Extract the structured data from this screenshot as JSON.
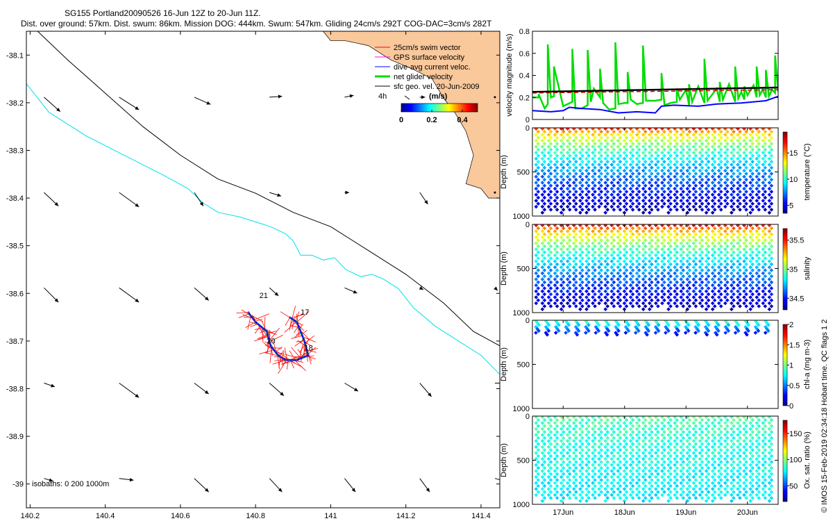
{
  "title": {
    "line1": "SG155 Portland20090526 16-Jun 12Z to 20-Jun 11Z.",
    "line2": "Dist. over ground: 57km. Dist. swum: 86km. Mission DOG: 444km. Swum: 547km. Gliding 24cm/s 292T COG-DAC=3cm/s 282T"
  },
  "colors": {
    "land": "#f9c89b",
    "isobath_200": "#00e0e8",
    "isobath_1000": "#000000",
    "swim": "#ff0000",
    "gps": "#ff00ff",
    "dac": "#0000ff",
    "net": "#00dd00",
    "sfc": "#000000",
    "trend_red": "#cc0000"
  },
  "chart_data": [
    {
      "type": "scatter",
      "name": "map",
      "xlim": [
        140.19,
        141.45
      ],
      "ylim": [
        -39.05,
        -38.05
      ],
      "xticks": [
        140.2,
        140.4,
        140.6,
        140.8,
        141,
        141.2,
        141.4
      ],
      "xtick_labels": [
        "140.2",
        "140.4",
        "140.6",
        "140.8",
        "141",
        "141.2",
        "141.4"
      ],
      "yticks": [
        -38.1,
        -38.2,
        -38.3,
        -38.4,
        -38.5,
        -38.6,
        -38.7,
        -38.8,
        -38.9,
        -39
      ],
      "ytick_labels": [
        "-38.1",
        "-38.2",
        "-38.3",
        "-38.4",
        "-38.5",
        "-38.6",
        "-38.7",
        "-38.8",
        "-38.9",
        "-39"
      ],
      "legend": {
        "items": [
          "25cm/s swim vector",
          "GPS surface velocity",
          "dive-avg current veloc.",
          "net glider velocity",
          "sfc geo. vel. 20-Jun-2009"
        ],
        "time_label": "4h",
        "colorbar_title": "(m/s)",
        "colorbar_ticks": [
          0,
          0.2,
          0.4
        ],
        "colorbar_tick_labels": [
          "0",
          "0.2",
          "0.4"
        ],
        "colorbar_range": [
          0,
          0.5
        ]
      },
      "isobath_label": "isobaths: 0   200  1000m",
      "day_labels": [
        {
          "text": "21",
          "lon": 140.81,
          "lat": -38.61
        },
        {
          "text": "17",
          "lon": 140.92,
          "lat": -38.645
        },
        {
          "text": "20",
          "lon": 140.83,
          "lat": -38.705
        },
        {
          "text": "18",
          "lon": 140.93,
          "lat": -38.72
        }
      ],
      "coastline": [
        [
          140.98,
          -38.05
        ],
        [
          141.0,
          -38.07
        ],
        [
          141.04,
          -38.07
        ],
        [
          141.1,
          -38.08
        ],
        [
          141.16,
          -38.11
        ],
        [
          141.22,
          -38.13
        ],
        [
          141.27,
          -38.15
        ],
        [
          141.3,
          -38.19
        ],
        [
          141.33,
          -38.22
        ],
        [
          141.36,
          -38.26
        ],
        [
          141.38,
          -38.31
        ],
        [
          141.36,
          -38.37
        ],
        [
          141.4,
          -38.38
        ],
        [
          141.42,
          -38.4
        ],
        [
          141.45,
          -38.4
        ]
      ],
      "isobath_200": [
        [
          140.19,
          -38.16
        ],
        [
          140.25,
          -38.22
        ],
        [
          140.35,
          -38.27
        ],
        [
          140.45,
          -38.31
        ],
        [
          140.55,
          -38.35
        ],
        [
          140.62,
          -38.38
        ],
        [
          140.66,
          -38.41
        ],
        [
          140.7,
          -38.43
        ],
        [
          140.76,
          -38.44
        ],
        [
          140.84,
          -38.46
        ],
        [
          140.88,
          -38.475
        ],
        [
          140.9,
          -38.49
        ],
        [
          140.92,
          -38.52
        ],
        [
          140.95,
          -38.52
        ],
        [
          140.98,
          -38.53
        ],
        [
          141.01,
          -38.525
        ],
        [
          141.04,
          -38.55
        ],
        [
          141.08,
          -38.565
        ],
        [
          141.11,
          -38.56
        ],
        [
          141.14,
          -38.57
        ],
        [
          141.18,
          -38.59
        ],
        [
          141.22,
          -38.63
        ],
        [
          141.28,
          -38.67
        ],
        [
          141.34,
          -38.7
        ],
        [
          141.4,
          -38.73
        ],
        [
          141.45,
          -38.77
        ]
      ],
      "isobath_1000": [
        [
          140.22,
          -38.05
        ],
        [
          140.3,
          -38.11
        ],
        [
          140.4,
          -38.18
        ],
        [
          140.5,
          -38.25
        ],
        [
          140.6,
          -38.31
        ],
        [
          140.7,
          -38.36
        ],
        [
          140.8,
          -38.39
        ],
        [
          140.9,
          -38.43
        ],
        [
          141.0,
          -38.46
        ],
        [
          141.1,
          -38.51
        ],
        [
          141.2,
          -38.56
        ],
        [
          141.3,
          -38.62
        ],
        [
          141.38,
          -38.68
        ],
        [
          141.45,
          -38.71
        ]
      ],
      "glider_track": [
        [
          140.78,
          -38.64
        ],
        [
          140.8,
          -38.66
        ],
        [
          140.83,
          -38.68
        ],
        [
          140.84,
          -38.71
        ],
        [
          140.86,
          -38.73
        ],
        [
          140.88,
          -38.74
        ],
        [
          140.91,
          -38.74
        ],
        [
          140.94,
          -38.73
        ],
        [
          140.93,
          -38.7
        ],
        [
          140.91,
          -38.66
        ],
        [
          140.89,
          -38.65
        ]
      ],
      "vector_rows_lat": [
        -38.2,
        -38.4,
        -38.6,
        -38.8,
        -39.0
      ],
      "vector_cols_lon": [
        140.2,
        140.4,
        140.6,
        140.8,
        141.0,
        141.2,
        141.4
      ],
      "sfc_vectors_u": [
        [
          0.18,
          0.22,
          0.18,
          0.14,
          0.1,
          0.06,
          0.0
        ],
        [
          0.16,
          0.22,
          0.1,
          0.13,
          0.05,
          0.09,
          0.0
        ],
        [
          0.16,
          0.22,
          0.16,
          0.1,
          0.14,
          0.04,
          0.03
        ],
        [
          0.12,
          0.22,
          0.16,
          0.16,
          0.15,
          0.13,
          0.1
        ],
        [
          0.1,
          0.16,
          0.16,
          0.14,
          0.12,
          0.11,
          0.11
        ]
      ],
      "sfc_vectors_v": [
        [
          -0.16,
          -0.14,
          -0.08,
          0.01,
          0.02,
          0.0,
          0.0
        ],
        [
          -0.15,
          -0.16,
          -0.15,
          -0.04,
          0.0,
          -0.13,
          0.0
        ],
        [
          -0.16,
          -0.16,
          -0.14,
          -0.09,
          -0.06,
          -0.02,
          -0.03
        ],
        [
          -0.04,
          -0.16,
          -0.12,
          -0.14,
          -0.09,
          -0.15,
          0.0
        ],
        [
          -0.03,
          -0.02,
          -0.15,
          -0.15,
          -0.15,
          -0.15,
          -0.03
        ]
      ]
    },
    {
      "type": "line",
      "name": "velocity",
      "ylabel": "velocity magnitude (m/s)",
      "ylim": [
        0,
        0.8
      ],
      "yticks": [
        0,
        0.2,
        0.4,
        0.6,
        0.8
      ],
      "ytick_labels": [
        "0",
        "0.2",
        "0.4",
        "0.6",
        "0.8"
      ],
      "xlim": [
        16.5,
        20.5
      ],
      "series": [
        {
          "name": "net glider velocity (green)",
          "x": [
            16.5,
            16.6,
            16.6,
            16.7,
            16.75,
            16.75,
            16.8,
            16.85,
            16.85,
            17.0,
            17.15,
            17.15,
            17.2,
            17.3,
            17.4,
            17.4,
            17.45,
            17.5,
            17.6,
            17.6,
            17.65,
            17.75,
            17.85,
            17.85,
            17.9,
            18.0,
            18.05,
            18.05,
            18.1,
            18.2,
            18.3,
            18.3,
            18.35,
            18.5,
            18.6,
            18.6,
            18.65,
            18.75,
            18.85,
            18.85,
            18.9,
            19.0,
            19.05,
            19.05,
            19.1,
            19.2,
            19.3,
            19.3,
            19.35,
            19.5,
            19.55,
            19.55,
            19.6,
            19.7,
            19.8,
            19.8,
            19.85,
            19.9,
            19.95,
            19.95,
            20.0,
            20.1,
            20.15,
            20.15,
            20.2,
            20.25,
            20.3,
            20.3,
            20.35,
            20.4,
            20.45,
            20.45,
            20.5
          ],
          "values": [
            0.2,
            0.2,
            0.23,
            0.1,
            0.14,
            0.68,
            0.2,
            0.21,
            0.48,
            0.12,
            0.16,
            0.64,
            0.1,
            0.1,
            0.13,
            0.63,
            0.16,
            0.28,
            0.2,
            0.46,
            0.15,
            0.09,
            0.1,
            0.7,
            0.14,
            0.15,
            0.15,
            0.43,
            0.18,
            0.14,
            0.15,
            0.67,
            0.17,
            0.17,
            0.18,
            0.42,
            0.13,
            0.15,
            0.16,
            0.28,
            0.18,
            0.27,
            0.13,
            0.32,
            0.16,
            0.3,
            0.15,
            0.55,
            0.17,
            0.28,
            0.16,
            0.34,
            0.18,
            0.32,
            0.16,
            0.48,
            0.19,
            0.25,
            0.18,
            0.3,
            0.22,
            0.31,
            0.2,
            0.48,
            0.22,
            0.27,
            0.2,
            0.45,
            0.21,
            0.27,
            0.24,
            0.58,
            0.25
          ]
        },
        {
          "name": "dive-avg current (blue)",
          "x": [
            16.5,
            16.8,
            17.0,
            17.1,
            17.3,
            17.6,
            17.9,
            18.2,
            18.5,
            18.6,
            18.8,
            19.2,
            19.5,
            19.9,
            20.3,
            20.5
          ],
          "values": [
            0.08,
            0.07,
            0.08,
            0.11,
            0.1,
            0.09,
            0.06,
            0.07,
            0.06,
            0.12,
            0.13,
            0.12,
            0.14,
            0.15,
            0.17,
            0.21
          ]
        },
        {
          "name": "black trend",
          "x": [
            16.5,
            20.5
          ],
          "values": [
            0.25,
            0.29
          ]
        },
        {
          "name": "red trend",
          "x": [
            16.5,
            20.5
          ],
          "values": [
            0.24,
            0.27
          ]
        }
      ]
    },
    {
      "type": "scatter",
      "name": "temperature",
      "ylabel": "Depth (m)",
      "ylim": [
        1000,
        0
      ],
      "yticks": [
        0,
        500,
        1000
      ],
      "ytick_labels": [
        "0",
        "500",
        "1000"
      ],
      "profiles": 38,
      "max_depth": 1000,
      "values_surface": 18,
      "values_bottom": 4,
      "cbar_label": "temperature (°C)",
      "cbar_range": [
        3.5,
        19
      ],
      "cbar_ticks": [
        5,
        10,
        15
      ],
      "cbar_tick_labels": [
        "5",
        "10",
        "15"
      ]
    },
    {
      "type": "scatter",
      "name": "salinity",
      "ylabel": "Depth (m)",
      "ylim": [
        1000,
        0
      ],
      "yticks": [
        0,
        500,
        1000
      ],
      "ytick_labels": [
        "0",
        "500",
        "1000"
      ],
      "profiles": 38,
      "max_depth": 1000,
      "values_surface": 35.7,
      "values_bottom": 34.35,
      "cbar_label": "salinity",
      "cbar_range": [
        34.3,
        35.7
      ],
      "cbar_ticks": [
        34.5,
        35,
        35.5
      ],
      "cbar_tick_labels": [
        "34.5",
        "35",
        "35.5"
      ]
    },
    {
      "type": "scatter",
      "name": "chlorophyll",
      "ylabel": "Depth (m)",
      "ylim": [
        1000,
        0
      ],
      "yticks": [
        0,
        500,
        1000
      ],
      "ytick_labels": [
        "0",
        "500",
        "1000"
      ],
      "profiles": 24,
      "max_depth": 170,
      "values_surface": 0.9,
      "values_bottom": 0.2,
      "cbar_label": "chl-a (mg m-3)",
      "cbar_range": [
        0,
        2
      ],
      "cbar_ticks": [
        0,
        0.5,
        1,
        1.5,
        2
      ],
      "cbar_tick_labels": [
        "0",
        "0.5",
        "1",
        "1.5",
        "2"
      ]
    },
    {
      "type": "scatter",
      "name": "oxygen",
      "ylabel": "Depth (m)",
      "ylim": [
        1000,
        0
      ],
      "yticks": [
        0,
        500,
        1000
      ],
      "ytick_labels": [
        "0",
        "500",
        "1000"
      ],
      "profiles": 38,
      "max_depth": 1000,
      "values_surface": 95,
      "values_bottom": 75,
      "cbar_label": "Ox. sat. ratio (%)",
      "cbar_range": [
        20,
        175
      ],
      "cbar_ticks": [
        50,
        100,
        150
      ],
      "cbar_tick_labels": [
        "50",
        "100",
        "150"
      ]
    }
  ],
  "time_axis": {
    "xlim": [
      16.5,
      20.5
    ],
    "ticks": [
      17,
      18,
      19,
      20
    ],
    "tick_labels": [
      "17Jun",
      "18Jun",
      "19Jun",
      "20Jun"
    ]
  },
  "credit": "© IMOS 15-Feb-2019 02:34:18 Hobart time. QC flags 1  2"
}
